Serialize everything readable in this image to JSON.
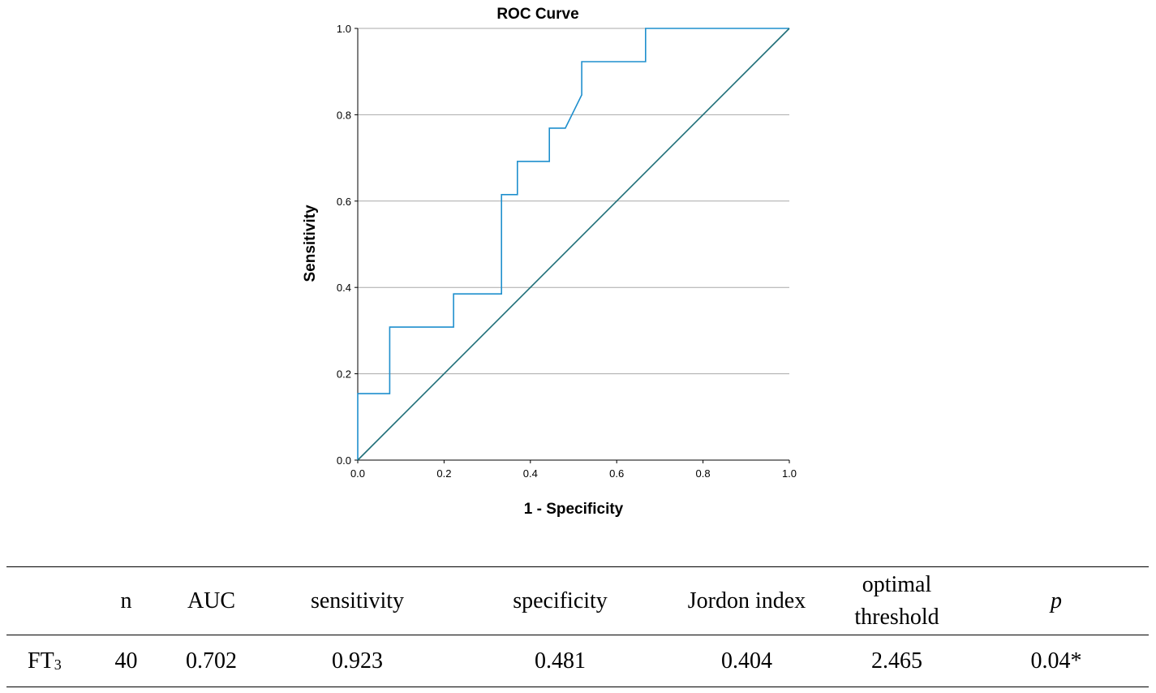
{
  "chart_data": {
    "type": "line",
    "title": "ROC Curve",
    "xlabel": "1 - Specificity",
    "ylabel": "Sensitivity",
    "xlim": [
      0,
      1
    ],
    "ylim": [
      0,
      1
    ],
    "x_ticks": [
      "0.0",
      "0.2",
      "0.4",
      "0.6",
      "0.8",
      "1.0"
    ],
    "y_ticks": [
      "0.0",
      "0.2",
      "0.4",
      "0.6",
      "0.8",
      "1.0"
    ],
    "grid": "horizontal",
    "series": [
      {
        "name": "ROC curve",
        "color": "#1f8fcd",
        "points": [
          [
            0,
            0
          ],
          [
            0,
            0.154
          ],
          [
            0.074,
            0.154
          ],
          [
            0.074,
            0.308
          ],
          [
            0.222,
            0.308
          ],
          [
            0.222,
            0.385
          ],
          [
            0.333,
            0.385
          ],
          [
            0.333,
            0.615
          ],
          [
            0.37,
            0.615
          ],
          [
            0.37,
            0.692
          ],
          [
            0.444,
            0.692
          ],
          [
            0.444,
            0.769
          ],
          [
            0.481,
            0.769
          ],
          [
            0.519,
            0.846
          ],
          [
            0.519,
            0.923
          ],
          [
            0.667,
            0.923
          ],
          [
            0.667,
            1.0
          ],
          [
            1.0,
            1.0
          ]
        ]
      },
      {
        "name": "Reference line",
        "color": "#1e6e78",
        "points": [
          [
            0,
            0
          ],
          [
            1,
            1
          ]
        ]
      }
    ]
  },
  "table": {
    "headers": {
      "n": "n",
      "auc": "AUC",
      "sensitivity": "sensitivity",
      "specificity": "specificity",
      "jordon_index": "Jordon index",
      "optimal_threshold_line1": "optimal",
      "optimal_threshold_line2": "threshold",
      "p": "p"
    },
    "row": {
      "label": "FT",
      "label_sub": "3",
      "n": "40",
      "auc": "0.702",
      "sensitivity": "0.923",
      "specificity": "0.481",
      "jordon_index": "0.404",
      "optimal_threshold": "2.465",
      "p": "0.04*"
    }
  }
}
